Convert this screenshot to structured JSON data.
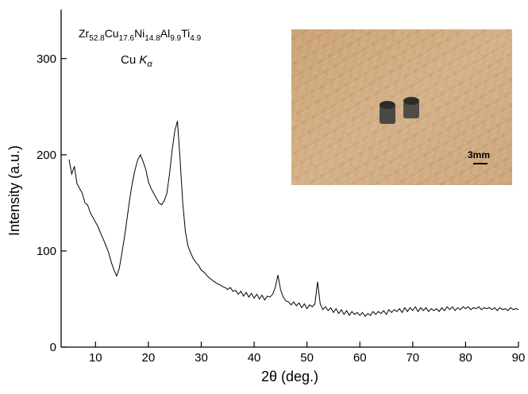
{
  "chart_data": {
    "type": "line",
    "xlabel": "2θ (deg.)",
    "ylabel": "Intensity (a.u.)",
    "composition": [
      {
        "el": "Zr",
        "sub": "52.8"
      },
      {
        "el": "Cu",
        "sub": "17.6"
      },
      {
        "el": "Ni",
        "sub": "14.8"
      },
      {
        "el": "Al",
        "sub": "9.9"
      },
      {
        "el": "Ti",
        "sub": "4.9"
      }
    ],
    "radiation": {
      "text": "Cu ",
      "italic": "K",
      "sub": "α"
    },
    "inset_scale": "3mm",
    "xlim": [
      3.5,
      90
    ],
    "xticks": [
      10,
      20,
      30,
      40,
      50,
      60,
      70,
      80,
      90
    ],
    "ylim": [
      0,
      351
    ],
    "yticks": [
      0,
      100,
      200,
      300
    ],
    "x": [
      5,
      5.5,
      6,
      6.5,
      7,
      7.5,
      8,
      8.5,
      9,
      9.5,
      10,
      10.5,
      11,
      11.5,
      12,
      12.5,
      13,
      13.5,
      14,
      14.5,
      15,
      15.5,
      16,
      16.5,
      17,
      17.5,
      18,
      18.5,
      19,
      19.5,
      20,
      20.5,
      21,
      21.5,
      22,
      22.5,
      23,
      23.5,
      24,
      24.5,
      25,
      25.5,
      26,
      26.5,
      27,
      27.5,
      28,
      28.5,
      29,
      29.5,
      30,
      30.5,
      31,
      31.5,
      32,
      32.5,
      33,
      33.5,
      34,
      34.5,
      35,
      35.5,
      36,
      36.5,
      37,
      37.5,
      38,
      38.5,
      39,
      39.5,
      40,
      40.5,
      41,
      41.5,
      42,
      42.5,
      43,
      43.5,
      44,
      44.5,
      45,
      45.5,
      46,
      46.5,
      47,
      47.5,
      48,
      48.5,
      49,
      49.5,
      50,
      50.5,
      51,
      51.5,
      52,
      52.5,
      53,
      53.5,
      54,
      54.5,
      55,
      55.5,
      56,
      56.5,
      57,
      57.5,
      58,
      58.5,
      59,
      59.5,
      60,
      60.5,
      61,
      61.5,
      62,
      62.5,
      63,
      63.5,
      64,
      64.5,
      65,
      65.5,
      66,
      66.5,
      67,
      67.5,
      68,
      68.5,
      69,
      69.5,
      70,
      70.5,
      71,
      71.5,
      72,
      72.5,
      73,
      73.5,
      74,
      74.5,
      75,
      75.5,
      76,
      76.5,
      77,
      77.5,
      78,
      78.5,
      79,
      79.5,
      80,
      80.5,
      81,
      81.5,
      82,
      82.5,
      83,
      83.5,
      84,
      84.5,
      85,
      85.5,
      86,
      86.5,
      87,
      87.5,
      88,
      88.5,
      89,
      89.5,
      90
    ],
    "series": [
      {
        "color": "#000000",
        "values": [
          195,
          180,
          188,
          170,
          165,
          160,
          150,
          148,
          140,
          135,
          130,
          125,
          118,
          112,
          105,
          98,
          88,
          80,
          74,
          82,
          98,
          115,
          135,
          155,
          172,
          185,
          195,
          200,
          193,
          185,
          172,
          165,
          160,
          155,
          150,
          148,
          152,
          160,
          180,
          205,
          225,
          235,
          195,
          150,
          120,
          105,
          98,
          92,
          88,
          85,
          80,
          78,
          75,
          72,
          70,
          68,
          66,
          65,
          63,
          62,
          60,
          62,
          58,
          59,
          55,
          58,
          53,
          57,
          52,
          56,
          51,
          55,
          50,
          54,
          49,
          53,
          52,
          55,
          62,
          75,
          60,
          52,
          48,
          47,
          44,
          47,
          43,
          46,
          41,
          45,
          40,
          44,
          42,
          45,
          68,
          45,
          39,
          42,
          38,
          41,
          36,
          40,
          35,
          39,
          34,
          38,
          33,
          37,
          34,
          36,
          33,
          36,
          32,
          35,
          33,
          37,
          34,
          37,
          35,
          38,
          34,
          39,
          36,
          39,
          37,
          40,
          36,
          41,
          37,
          41,
          38,
          42,
          37,
          41,
          38,
          41,
          37,
          40,
          38,
          40,
          37,
          41,
          38,
          42,
          39,
          42,
          38,
          41,
          39,
          42,
          40,
          42,
          39,
          41,
          40,
          42,
          39,
          41,
          40,
          41,
          39,
          41,
          38,
          41,
          39,
          40,
          38,
          41,
          39,
          40,
          39
        ]
      }
    ]
  }
}
